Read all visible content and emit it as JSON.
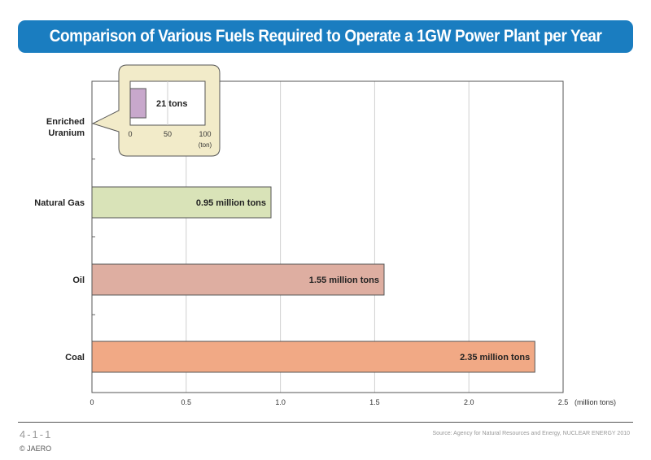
{
  "title": "Comparison of Various Fuels Required to Operate a 1GW Power Plant per Year",
  "footer": {
    "page_number": "4-1-1",
    "copyright": "© JAERO",
    "source": "Source: Agency for Natural Resources and Energy, NUCLEAR ENERGY 2010"
  },
  "colors": {
    "title_bar": "#1a7dc0",
    "uranium": "#c8a8cc",
    "natural_gas": "#d9e3b8",
    "oil": "#deaea1",
    "coal": "#f1a985",
    "callout_bg": "#f2ebc9"
  },
  "chart_data": {
    "type": "bar",
    "orientation": "horizontal",
    "categories": [
      "Enriched Uranium",
      "Natural Gas",
      "Oil",
      "Coal"
    ],
    "values": [
      2.1e-05,
      0.95,
      1.55,
      2.35
    ],
    "bar_labels": [
      "",
      "0.95 million tons",
      "1.55 million tons",
      "2.35 million tons"
    ],
    "xlim": [
      0,
      2.5
    ],
    "x_ticks": [
      "0",
      "0.5",
      "1.0",
      "1.5",
      "2.0",
      "2.5"
    ],
    "x_unit": "(million tons)",
    "grid": true,
    "inset": {
      "category": "Enriched Uranium",
      "value": 21,
      "label": "21 tons",
      "xlim": [
        0,
        100
      ],
      "x_ticks": [
        "0",
        "50",
        "100"
      ],
      "x_unit": "(ton)"
    }
  }
}
